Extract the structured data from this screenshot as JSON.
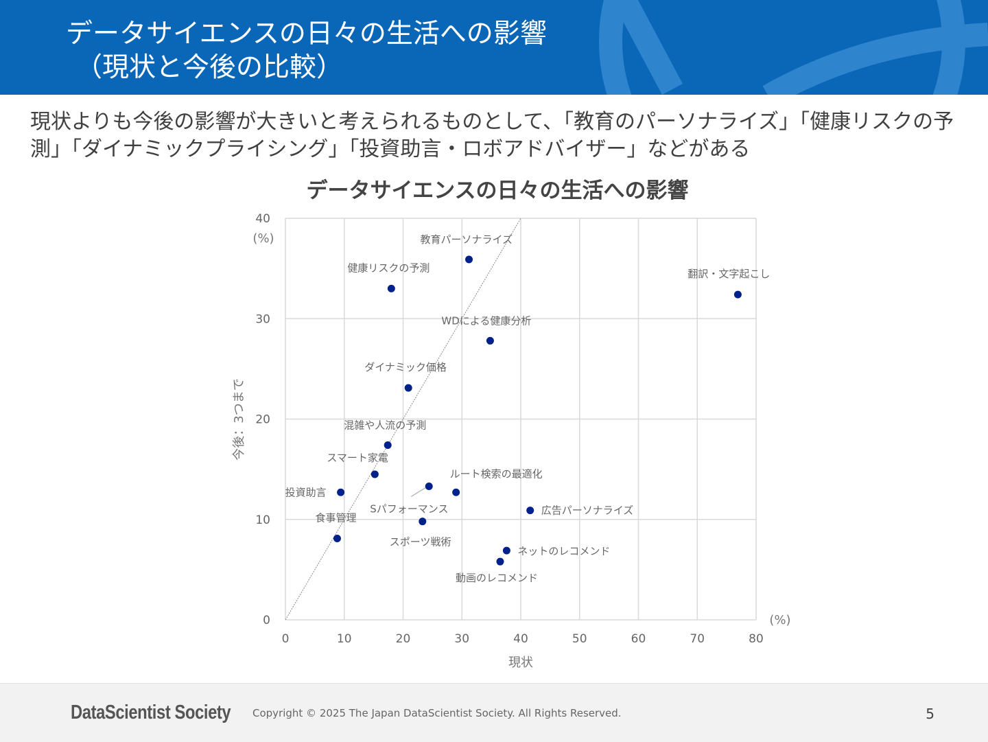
{
  "header": {
    "title_line1": "データサイエンスの日々の生活への影響",
    "title_line2": "（現状と今後の比較）"
  },
  "subtitle": "現状よりも今後の影響が大きいと考えられるものとして、「教育のパーソナライズ」「健康リスクの予測」「ダイナミックプライシング」「投資助言・ロボアドバイザー」などがある",
  "chart_data": {
    "type": "scatter",
    "title": "データサイエンスの日々の生活への影響",
    "xlabel": "現状",
    "ylabel": "今後：3つまで",
    "x_unit": "(%)",
    "y_unit": "(%)",
    "xlim": [
      0,
      80
    ],
    "ylim": [
      0,
      40
    ],
    "xticks": [
      0,
      10,
      20,
      30,
      40,
      50,
      60,
      70,
      80
    ],
    "yticks": [
      0,
      10,
      20,
      30,
      40
    ],
    "grid": true,
    "reference_line": "y = x",
    "point_color": "#00208a",
    "points": [
      {
        "label": "教育パーソナライズ",
        "x": 31.2,
        "y": 35.9
      },
      {
        "label": "健康リスクの予測",
        "x": 18.0,
        "y": 33.0
      },
      {
        "label": "翻訳・文字起こし",
        "x": 76.9,
        "y": 32.4
      },
      {
        "label": "WDによる健康分析",
        "x": 34.8,
        "y": 27.8
      },
      {
        "label": "ダイナミック価格",
        "x": 20.9,
        "y": 23.1
      },
      {
        "label": "混雑や人流の予測",
        "x": 17.4,
        "y": 17.4
      },
      {
        "label": "スマート家電",
        "x": 15.2,
        "y": 14.5
      },
      {
        "label": "ルート検索の最適化",
        "x": 29.0,
        "y": 12.7
      },
      {
        "label": "Sパフォーマンス",
        "x": 24.4,
        "y": 13.3
      },
      {
        "label": "投資助言",
        "x": 9.4,
        "y": 12.7
      },
      {
        "label": "広告パーソナライズ",
        "x": 41.6,
        "y": 10.9
      },
      {
        "label": "スポーツ戦術",
        "x": 23.3,
        "y": 9.8
      },
      {
        "label": "食事管理",
        "x": 8.8,
        "y": 8.1
      },
      {
        "label": "ネットのレコメンド",
        "x": 37.6,
        "y": 6.9
      },
      {
        "label": "動画のレコメンド",
        "x": 36.5,
        "y": 5.8
      }
    ]
  },
  "footer": {
    "logo": "DataScientist Society",
    "copyright": "Copyright © 2025 The Japan DataScientist Society. All Rights Reserved.",
    "page_number": "5"
  }
}
